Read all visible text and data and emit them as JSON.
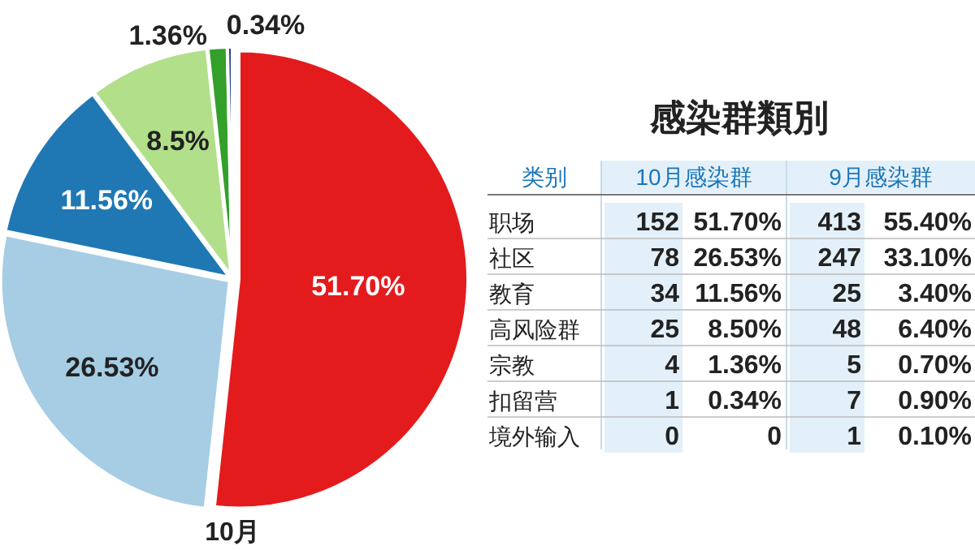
{
  "chart_data": [
    {
      "type": "pie",
      "categories": [
        null,
        null,
        null,
        null,
        null,
        null
      ],
      "values": [
        51.7,
        26.53,
        11.56,
        8.5,
        1.36,
        0.34
      ],
      "colors": [
        "#e31b1d",
        "#a6cde4",
        "#1f78b4",
        "#b2df8a",
        "#33a02c",
        "#1c3b8c"
      ],
      "value_labels": [
        "51.70%",
        "26.53%",
        "11.56%",
        "8.5%",
        "1.36%",
        "0.34%"
      ],
      "annotations": [
        "10月"
      ]
    },
    {
      "type": "other",
      "title": "感染群類別",
      "annotations": [
        "类别",
        "10月感染群",
        "9月感染群",
        "职场",
        "152",
        "51.70%",
        "413",
        "55.40%",
        "社区",
        "78",
        "26.53%",
        "247",
        "33.10%",
        "教育",
        "34",
        "11.56%",
        "25",
        "3.40%",
        "高风险群",
        "25",
        "8.50%",
        "48",
        "6.40%",
        "宗教",
        "4",
        "1.36%",
        "5",
        "0.70%",
        "扣留营",
        "1",
        "0.34%",
        "7",
        "0.90%",
        "境外输入",
        "0",
        "0",
        "1",
        "0.10%"
      ]
    }
  ]
}
